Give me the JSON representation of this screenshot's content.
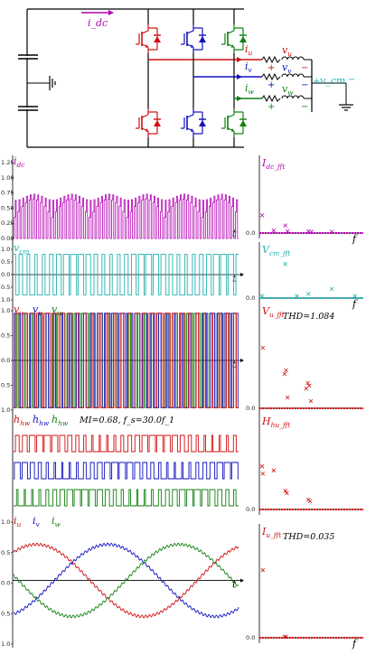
{
  "circuit": {
    "labels": {
      "idc": "i_dc",
      "iu": "i_u",
      "iv": "i_v",
      "iw": "i_w",
      "vu": "v_u",
      "vv": "v_v",
      "vw": "v_w",
      "vcm": "v_cm",
      "plus": "+",
      "minus": "−"
    }
  },
  "left_panels": [
    {
      "id": "idc",
      "labels": [
        "i_dc"
      ],
      "label_colors": [
        "#b300b3"
      ],
      "ticks": [
        "1.25",
        "1.00",
        "0.75",
        "0.50",
        "0.25",
        "0.00"
      ],
      "t_label": "t"
    },
    {
      "id": "vcm",
      "labels": [
        "v_cm"
      ],
      "label_colors": [
        "#22b0b0"
      ],
      "ticks": [
        "1.0",
        "0.5",
        "0.0",
        "0.5",
        "1.0"
      ],
      "t_label": "t"
    },
    {
      "id": "vuvw",
      "labels": [
        "v_u",
        "v_v",
        "v_w"
      ],
      "label_colors": [
        "#d01010",
        "#1010c0",
        "#108010"
      ],
      "ticks": [
        "1.0",
        "0.5",
        "0.0",
        "0.5",
        "1.0"
      ],
      "t_label": "t"
    },
    {
      "id": "hhw",
      "labels": [
        "h_hw",
        "h_hw",
        "h_hw"
      ],
      "label_colors": [
        "#d01010",
        "#1010c0",
        "#108010"
      ],
      "annotation": "MI=0.68, f_s=30.0f_1",
      "ticks": [],
      "t_label": ""
    },
    {
      "id": "iuvw",
      "labels": [
        "i_u",
        "i_v",
        "i_w"
      ],
      "label_colors": [
        "#d01010",
        "#1010c0",
        "#108010"
      ],
      "ticks": [
        "1.0",
        "0.5",
        "0.0",
        "0.5",
        "1.0"
      ],
      "t_label": "t"
    }
  ],
  "right_panels": [
    {
      "id": "idc_fft",
      "label": "I_dc_fft",
      "color": "#b300b3",
      "thd": "",
      "f_label": "f"
    },
    {
      "id": "vcm_fft",
      "label": "V_cm_fft",
      "color": "#22b0b0",
      "thd": "",
      "f_label": "f"
    },
    {
      "id": "vu_fft",
      "label": "V_u_fft",
      "color": "#d01010",
      "thd": "THD=1.084",
      "f_label": ""
    },
    {
      "id": "hhu_fft",
      "label": "H_hu_fft",
      "color": "#d01010",
      "thd": "",
      "f_label": ""
    },
    {
      "id": "iu_fft",
      "label": "I_u_fft",
      "color": "#d01010",
      "thd": "THD=0.035",
      "f_label": "f"
    }
  ],
  "right_ticks": [
    "0.0"
  ],
  "colors": {
    "u": "#d01010",
    "v": "#1010c0",
    "w": "#108010",
    "dc": "#b300b3",
    "cm": "#22b0b0",
    "black": "#000000"
  },
  "chart_data": [
    {
      "type": "line",
      "title": "",
      "series": [
        {
          "name": "i_dc",
          "description": "pulsed DC-link current, peaks about 0.70"
        }
      ],
      "ylim": [
        0,
        1.25
      ],
      "xlabel": "t"
    },
    {
      "type": "line",
      "series": [
        {
          "name": "v_cm",
          "description": "square wave ±0.8"
        }
      ],
      "ylim": [
        -1.0,
        1.0
      ],
      "xlabel": "t"
    },
    {
      "type": "line",
      "series": [
        {
          "name": "v_u",
          "description": "PWM ±0.95"
        },
        {
          "name": "v_v",
          "description": "PWM ±0.95"
        },
        {
          "name": "v_w",
          "description": "PWM ±0.95"
        }
      ],
      "ylim": [
        -1.0,
        1.0
      ],
      "xlabel": "t"
    },
    {
      "type": "line",
      "series": [
        {
          "name": "h_hw",
          "description": "gate signal 0/1"
        },
        {
          "name": "h_hw",
          "description": "gate signal 0/1"
        },
        {
          "name": "h_hw",
          "description": "gate signal 0/1"
        }
      ],
      "annotation": "MI=0.68, f_s=30.0f_1"
    },
    {
      "type": "line",
      "series": [
        {
          "name": "i_u",
          "amplitude": 0.68
        },
        {
          "name": "i_v",
          "amplitude": 0.68
        },
        {
          "name": "i_w",
          "amplitude": 0.68
        }
      ],
      "ylim": [
        -1.0,
        1.0
      ],
      "xlabel": "t"
    },
    {
      "type": "scatter",
      "series": [
        {
          "name": "I_dc_fft",
          "points": [
            [
              0,
              0.28
            ],
            [
              15,
              0.04
            ],
            [
              30,
              0.12
            ],
            [
              33,
              0.03
            ],
            [
              60,
              0.03
            ],
            [
              64,
              0.02
            ],
            [
              90,
              0.02
            ]
          ]
        }
      ],
      "xlabel": "f"
    },
    {
      "type": "scatter",
      "series": [
        {
          "name": "V_cm_fft",
          "points": [
            [
              0,
              0.05
            ],
            [
              30,
              0.82
            ],
            [
              45,
              0.05
            ],
            [
              60,
              0.1
            ],
            [
              90,
              0.22
            ],
            [
              120,
              0.05
            ]
          ]
        }
      ],
      "xlabel": "f"
    },
    {
      "type": "scatter",
      "series": [
        {
          "name": "V_u_fft",
          "points": [
            [
              1,
              0.67
            ],
            [
              29,
              0.38
            ],
            [
              31,
              0.42
            ],
            [
              33,
              0.12
            ],
            [
              57,
              0.22
            ],
            [
              59,
              0.28
            ],
            [
              61,
              0.25
            ],
            [
              63,
              0.08
            ]
          ]
        }
      ],
      "thd": 1.084
    },
    {
      "type": "scatter",
      "series": [
        {
          "name": "H_hu_fft",
          "points": [
            [
              0,
              0.53
            ],
            [
              1,
              0.44
            ],
            [
              15,
              0.48
            ],
            [
              30,
              0.23
            ],
            [
              32,
              0.2
            ],
            [
              60,
              0.12
            ],
            [
              62,
              0.1
            ]
          ]
        }
      ]
    },
    {
      "type": "scatter",
      "series": [
        {
          "name": "I_u_fft",
          "points": [
            [
              1,
              0.68
            ],
            [
              29,
              0.01
            ],
            [
              31,
              0.01
            ]
          ]
        }
      ],
      "thd": 0.035,
      "xlabel": "f"
    }
  ]
}
